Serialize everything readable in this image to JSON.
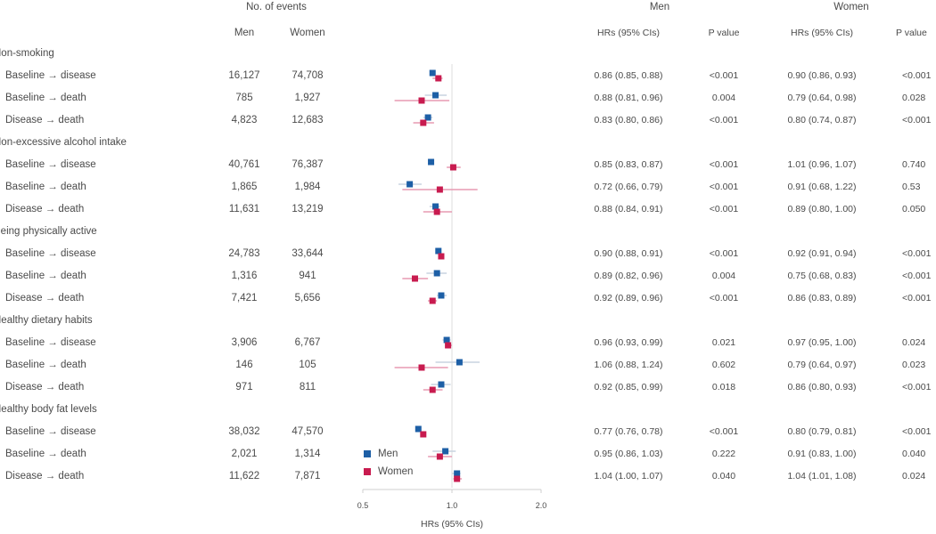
{
  "header": {
    "events_title": "No. of events",
    "events_men": "Men",
    "events_women": "Women",
    "men_title": "Men",
    "women_title": "Women",
    "hr_col": "HRs (95% CIs)",
    "p_col": "P value"
  },
  "chart_data": {
    "type": "forest",
    "xlabel": "HRs (95% CIs)",
    "xscale": "log",
    "xlim": [
      0.5,
      2.0
    ],
    "xticks": [
      "0.5",
      "1.0",
      "2.0"
    ],
    "reference_line": 1.0,
    "legend": {
      "position": "bottom-left",
      "entries": [
        "Men",
        "Women"
      ]
    },
    "colors": {
      "Men": "#1d5fa6",
      "Women": "#c81b4f"
    },
    "groups": [
      {
        "name": "Non-smoking",
        "rows": [
          {
            "label": "Baseline → disease",
            "n_men": "16,127",
            "n_women": "74,708",
            "men": {
              "hr": 0.86,
              "lo": 0.85,
              "hi": 0.88,
              "text": "0.86 (0.85, 0.88)",
              "p": "<0.001"
            },
            "women": {
              "hr": 0.9,
              "lo": 0.86,
              "hi": 0.93,
              "text": "0.90 (0.86, 0.93)",
              "p": "<0.001"
            }
          },
          {
            "label": "Baseline → death",
            "n_men": "785",
            "n_women": "1,927",
            "men": {
              "hr": 0.88,
              "lo": 0.81,
              "hi": 0.96,
              "text": "0.88 (0.81, 0.96)",
              "p": "0.004"
            },
            "women": {
              "hr": 0.79,
              "lo": 0.64,
              "hi": 0.98,
              "text": "0.79 (0.64, 0.98)",
              "p": "0.028"
            }
          },
          {
            "label": "Disease → death",
            "n_men": "4,823",
            "n_women": "12,683",
            "men": {
              "hr": 0.83,
              "lo": 0.8,
              "hi": 0.86,
              "text": "0.83 (0.80, 0.86)",
              "p": "<0.001"
            },
            "women": {
              "hr": 0.8,
              "lo": 0.74,
              "hi": 0.87,
              "text": "0.80 (0.74, 0.87)",
              "p": "<0.001"
            }
          }
        ]
      },
      {
        "name": "Non-excessive alcohol intake",
        "rows": [
          {
            "label": "Baseline → disease",
            "n_men": "40,761",
            "n_women": "76,387",
            "men": {
              "hr": 0.85,
              "lo": 0.83,
              "hi": 0.87,
              "text": "0.85 (0.83, 0.87)",
              "p": "<0.001"
            },
            "women": {
              "hr": 1.01,
              "lo": 0.96,
              "hi": 1.07,
              "text": "1.01 (0.96, 1.07)",
              "p": "0.740"
            }
          },
          {
            "label": "Baseline → death",
            "n_men": "1,865",
            "n_women": "1,984",
            "men": {
              "hr": 0.72,
              "lo": 0.66,
              "hi": 0.79,
              "text": "0.72 (0.66, 0.79)",
              "p": "<0.001"
            },
            "women": {
              "hr": 0.91,
              "lo": 0.68,
              "hi": 1.22,
              "text": "0.91 (0.68, 1.22)",
              "p": "0.53"
            }
          },
          {
            "label": "Disease → death",
            "n_men": "11,631",
            "n_women": "13,219",
            "men": {
              "hr": 0.88,
              "lo": 0.84,
              "hi": 0.91,
              "text": "0.88 (0.84, 0.91)",
              "p": "<0.001"
            },
            "women": {
              "hr": 0.89,
              "lo": 0.8,
              "hi": 1.0,
              "text": "0.89 (0.80, 1.00)",
              "p": "0.050"
            }
          }
        ]
      },
      {
        "name": "Being physically active",
        "rows": [
          {
            "label": "Baseline → disease",
            "n_men": "24,783",
            "n_women": "33,644",
            "men": {
              "hr": 0.9,
              "lo": 0.88,
              "hi": 0.91,
              "text": "0.90 (0.88, 0.91)",
              "p": "<0.001"
            },
            "women": {
              "hr": 0.92,
              "lo": 0.91,
              "hi": 0.94,
              "text": "0.92 (0.91, 0.94)",
              "p": "<0.001"
            }
          },
          {
            "label": "Baseline → death",
            "n_men": "1,316",
            "n_women": "941",
            "men": {
              "hr": 0.89,
              "lo": 0.82,
              "hi": 0.96,
              "text": "0.89 (0.82, 0.96)",
              "p": "0.004"
            },
            "women": {
              "hr": 0.75,
              "lo": 0.68,
              "hi": 0.83,
              "text": "0.75 (0.68, 0.83)",
              "p": "<0.001"
            }
          },
          {
            "label": "Disease → death",
            "n_men": "7,421",
            "n_women": "5,656",
            "men": {
              "hr": 0.92,
              "lo": 0.89,
              "hi": 0.96,
              "text": "0.92 (0.89, 0.96)",
              "p": "<0.001"
            },
            "women": {
              "hr": 0.86,
              "lo": 0.83,
              "hi": 0.89,
              "text": "0.86 (0.83, 0.89)",
              "p": "<0.001"
            }
          }
        ]
      },
      {
        "name": "Healthy dietary habits",
        "rows": [
          {
            "label": "Baseline → disease",
            "n_men": "3,906",
            "n_women": "6,767",
            "men": {
              "hr": 0.96,
              "lo": 0.93,
              "hi": 0.99,
              "text": "0.96 (0.93, 0.99)",
              "p": "0.021"
            },
            "women": {
              "hr": 0.97,
              "lo": 0.95,
              "hi": 1.0,
              "text": "0.97 (0.95, 1.00)",
              "p": "0.024"
            }
          },
          {
            "label": "Baseline → death",
            "n_men": "146",
            "n_women": "105",
            "men": {
              "hr": 1.06,
              "lo": 0.88,
              "hi": 1.24,
              "text": "1.06 (0.88, 1.24)",
              "p": "0.602"
            },
            "women": {
              "hr": 0.79,
              "lo": 0.64,
              "hi": 0.97,
              "text": "0.79 (0.64, 0.97)",
              "p": "0.023"
            }
          },
          {
            "label": "Disease → death",
            "n_men": "971",
            "n_women": "811",
            "men": {
              "hr": 0.92,
              "lo": 0.85,
              "hi": 0.99,
              "text": "0.92 (0.85, 0.99)",
              "p": "0.018"
            },
            "women": {
              "hr": 0.86,
              "lo": 0.8,
              "hi": 0.93,
              "text": "0.86 (0.80, 0.93)",
              "p": "<0.001"
            }
          }
        ]
      },
      {
        "name": "Healthy body fat levels",
        "rows": [
          {
            "label": "Baseline → disease",
            "n_men": "38,032",
            "n_women": "47,570",
            "men": {
              "hr": 0.77,
              "lo": 0.76,
              "hi": 0.78,
              "text": "0.77 (0.76, 0.78)",
              "p": "<0.001"
            },
            "women": {
              "hr": 0.8,
              "lo": 0.79,
              "hi": 0.81,
              "text": "0.80 (0.79, 0.81)",
              "p": "<0.001"
            }
          },
          {
            "label": "Baseline → death",
            "n_men": "2,021",
            "n_women": "1,314",
            "men": {
              "hr": 0.95,
              "lo": 0.86,
              "hi": 1.03,
              "text": "0.95 (0.86, 1.03)",
              "p": "0.222"
            },
            "women": {
              "hr": 0.91,
              "lo": 0.83,
              "hi": 1.0,
              "text": "0.91 (0.83, 1.00)",
              "p": "0.040"
            }
          },
          {
            "label": "Disease → death",
            "n_men": "11,622",
            "n_women": "7,871",
            "men": {
              "hr": 1.04,
              "lo": 1.0,
              "hi": 1.07,
              "text": "1.04 (1.00, 1.07)",
              "p": "0.040"
            },
            "women": {
              "hr": 1.04,
              "lo": 1.01,
              "hi": 1.08,
              "text": "1.04 (1.01, 1.08)",
              "p": "0.024"
            }
          }
        ]
      }
    ]
  }
}
